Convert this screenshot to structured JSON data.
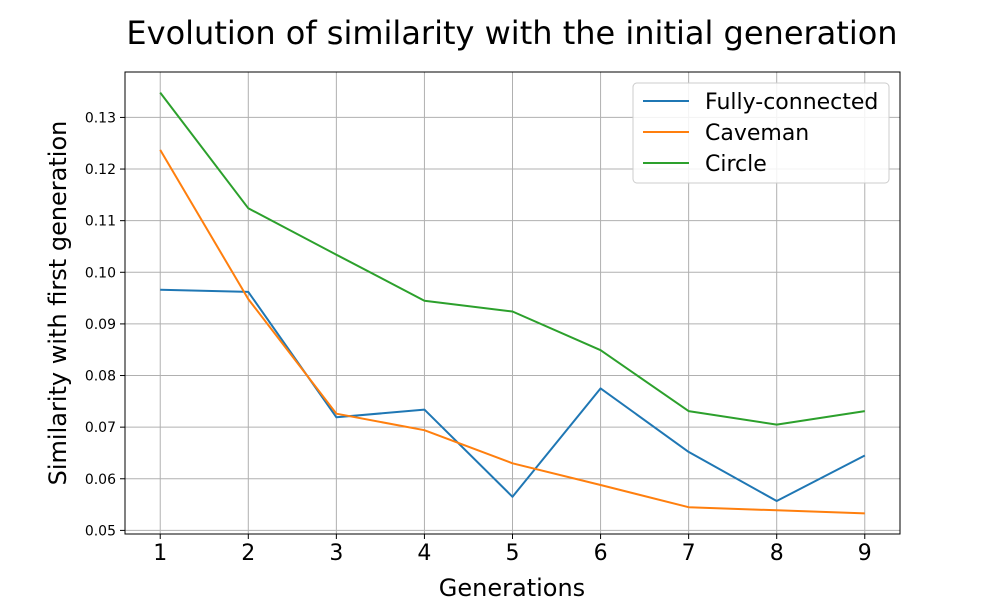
{
  "chart_data": {
    "type": "line",
    "title": "Evolution of similarity with the initial generation",
    "xlabel": "Generations",
    "ylabel": "Similarity with first generation",
    "x": [
      1,
      2,
      3,
      4,
      5,
      6,
      7,
      8,
      9
    ],
    "xticks": [
      "1",
      "2",
      "3",
      "4",
      "5",
      "6",
      "7",
      "8",
      "9"
    ],
    "xlim": [
      0.6,
      9.4
    ],
    "ylim": [
      0.0493,
      0.1388
    ],
    "yticks": [
      0.05,
      0.06,
      0.07,
      0.08,
      0.09,
      0.1,
      0.11,
      0.12,
      0.13
    ],
    "ytick_labels": [
      "0.05",
      "0.06",
      "0.07",
      "0.08",
      "0.09",
      "0.10",
      "0.11",
      "0.12",
      "0.13"
    ],
    "grid": true,
    "legend_position": "top-right",
    "series": [
      {
        "name": "Fully-connected",
        "color": "#1f77b4",
        "values": [
          0.0966,
          0.0962,
          0.0719,
          0.0734,
          0.0565,
          0.0775,
          0.0652,
          0.0557,
          0.0645
        ]
      },
      {
        "name": "Caveman",
        "color": "#ff7f0e",
        "values": [
          0.1237,
          0.0948,
          0.0726,
          0.0694,
          0.063,
          0.0588,
          0.0545,
          0.0539,
          0.0533
        ]
      },
      {
        "name": "Circle",
        "color": "#2ca02c",
        "values": [
          0.1348,
          0.1124,
          0.1034,
          0.0945,
          0.0924,
          0.0849,
          0.0731,
          0.0705,
          0.0731
        ]
      }
    ]
  }
}
